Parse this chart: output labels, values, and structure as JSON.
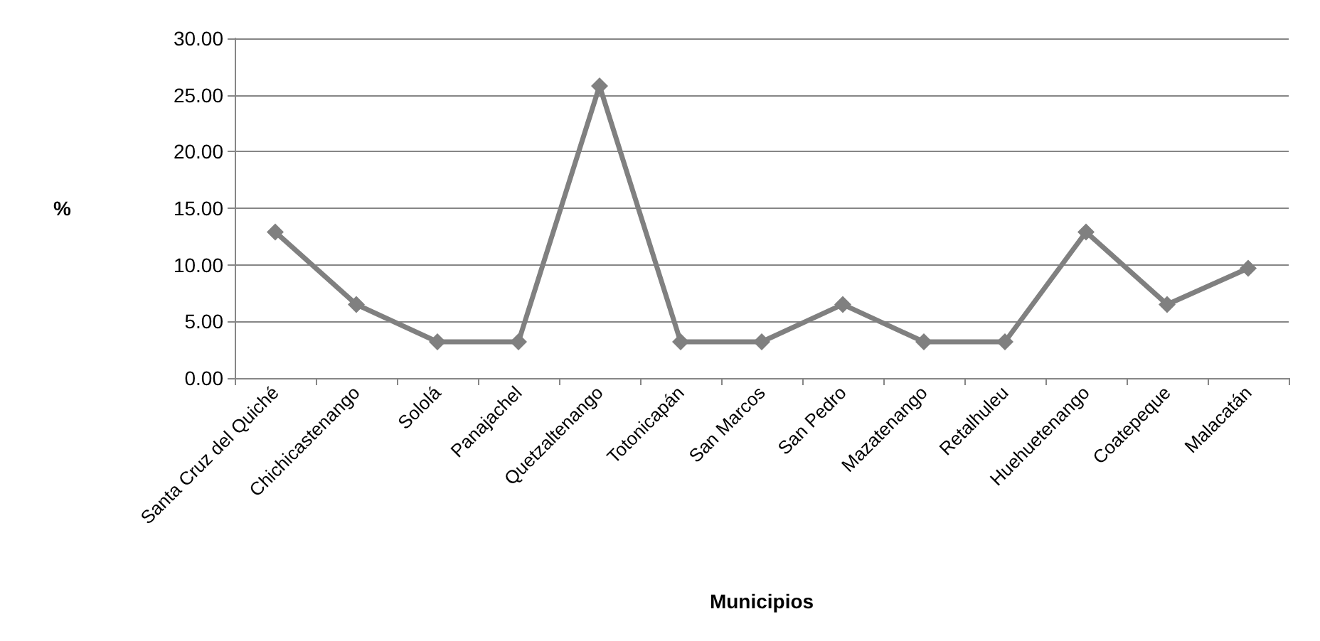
{
  "chart_data": {
    "type": "line",
    "xlabel": "Municipios",
    "ylabel": "%",
    "categories": [
      "Santa Cruz del Quiché",
      "Chichicastenango",
      "Sololá",
      "Panajachel",
      "Quetzaltenango",
      "Totonicapán",
      "San Marcos",
      "San Pedro",
      "Mazatenango",
      "Retalhuleu",
      "Huehuetenango",
      "Coatepeque",
      "Malacatán"
    ],
    "series": [
      {
        "color": "#808080",
        "values": [
          12.9,
          6.5,
          3.2,
          3.2,
          25.8,
          3.2,
          3.2,
          6.5,
          3.2,
          3.2,
          12.9,
          6.5,
          9.7
        ]
      }
    ],
    "ylim": [
      0,
      30
    ],
    "yticks": [
      {
        "value": 0,
        "label": "0.00"
      },
      {
        "value": 5,
        "label": "5.00"
      },
      {
        "value": 10,
        "label": "10.00"
      },
      {
        "value": 15,
        "label": "15.00"
      },
      {
        "value": 20,
        "label": "20.00"
      },
      {
        "value": 25,
        "label": "25.00"
      },
      {
        "value": 30,
        "label": "30.00"
      }
    ],
    "grid": "y",
    "marker": "diamond",
    "line_style": "solid"
  }
}
